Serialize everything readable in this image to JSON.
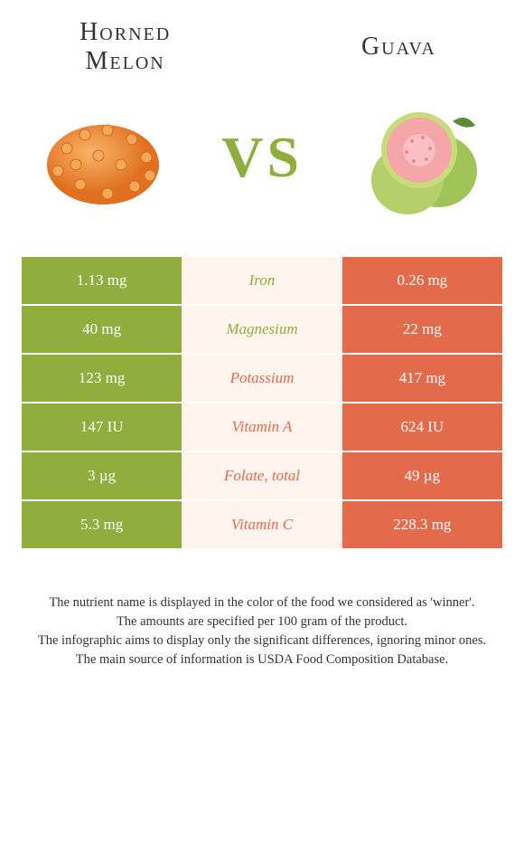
{
  "left_fruit": {
    "name": "Horned Melon",
    "color": "#8fae3e",
    "image_colors": {
      "main": "#e8862f",
      "accent": "#f4a85a"
    }
  },
  "right_fruit": {
    "name": "Guava",
    "color": "#e36a4b",
    "image_colors": {
      "skin": "#a1c458",
      "flesh": "#f5a6a8",
      "leaf": "#5a8a3a"
    }
  },
  "vs_label": "VS",
  "vs_color": "#8fae3e",
  "table_bg": "#fff4ee",
  "rows": [
    {
      "left": "1.13 mg",
      "label": "Iron",
      "right": "0.26 mg",
      "winner": "left"
    },
    {
      "left": "40 mg",
      "label": "Magnesium",
      "right": "22 mg",
      "winner": "left"
    },
    {
      "left": "123 mg",
      "label": "Potassium",
      "right": "417 mg",
      "winner": "right"
    },
    {
      "left": "147 IU",
      "label": "Vitamin A",
      "right": "624 IU",
      "winner": "right"
    },
    {
      "left": "3 µg",
      "label": "Folate, total",
      "right": "49 µg",
      "winner": "right"
    },
    {
      "left": "5.3 mg",
      "label": "Vitamin C",
      "right": "228.3 mg",
      "winner": "right"
    }
  ],
  "footer_lines": [
    "The nutrient name is displayed in the color of the food we considered as 'winner'.",
    "The amounts are specified per 100 gram of the product.",
    "The infographic aims to display only the significant differences, ignoring minor ones.",
    "The main source of information is USDA Food Composition Database."
  ]
}
